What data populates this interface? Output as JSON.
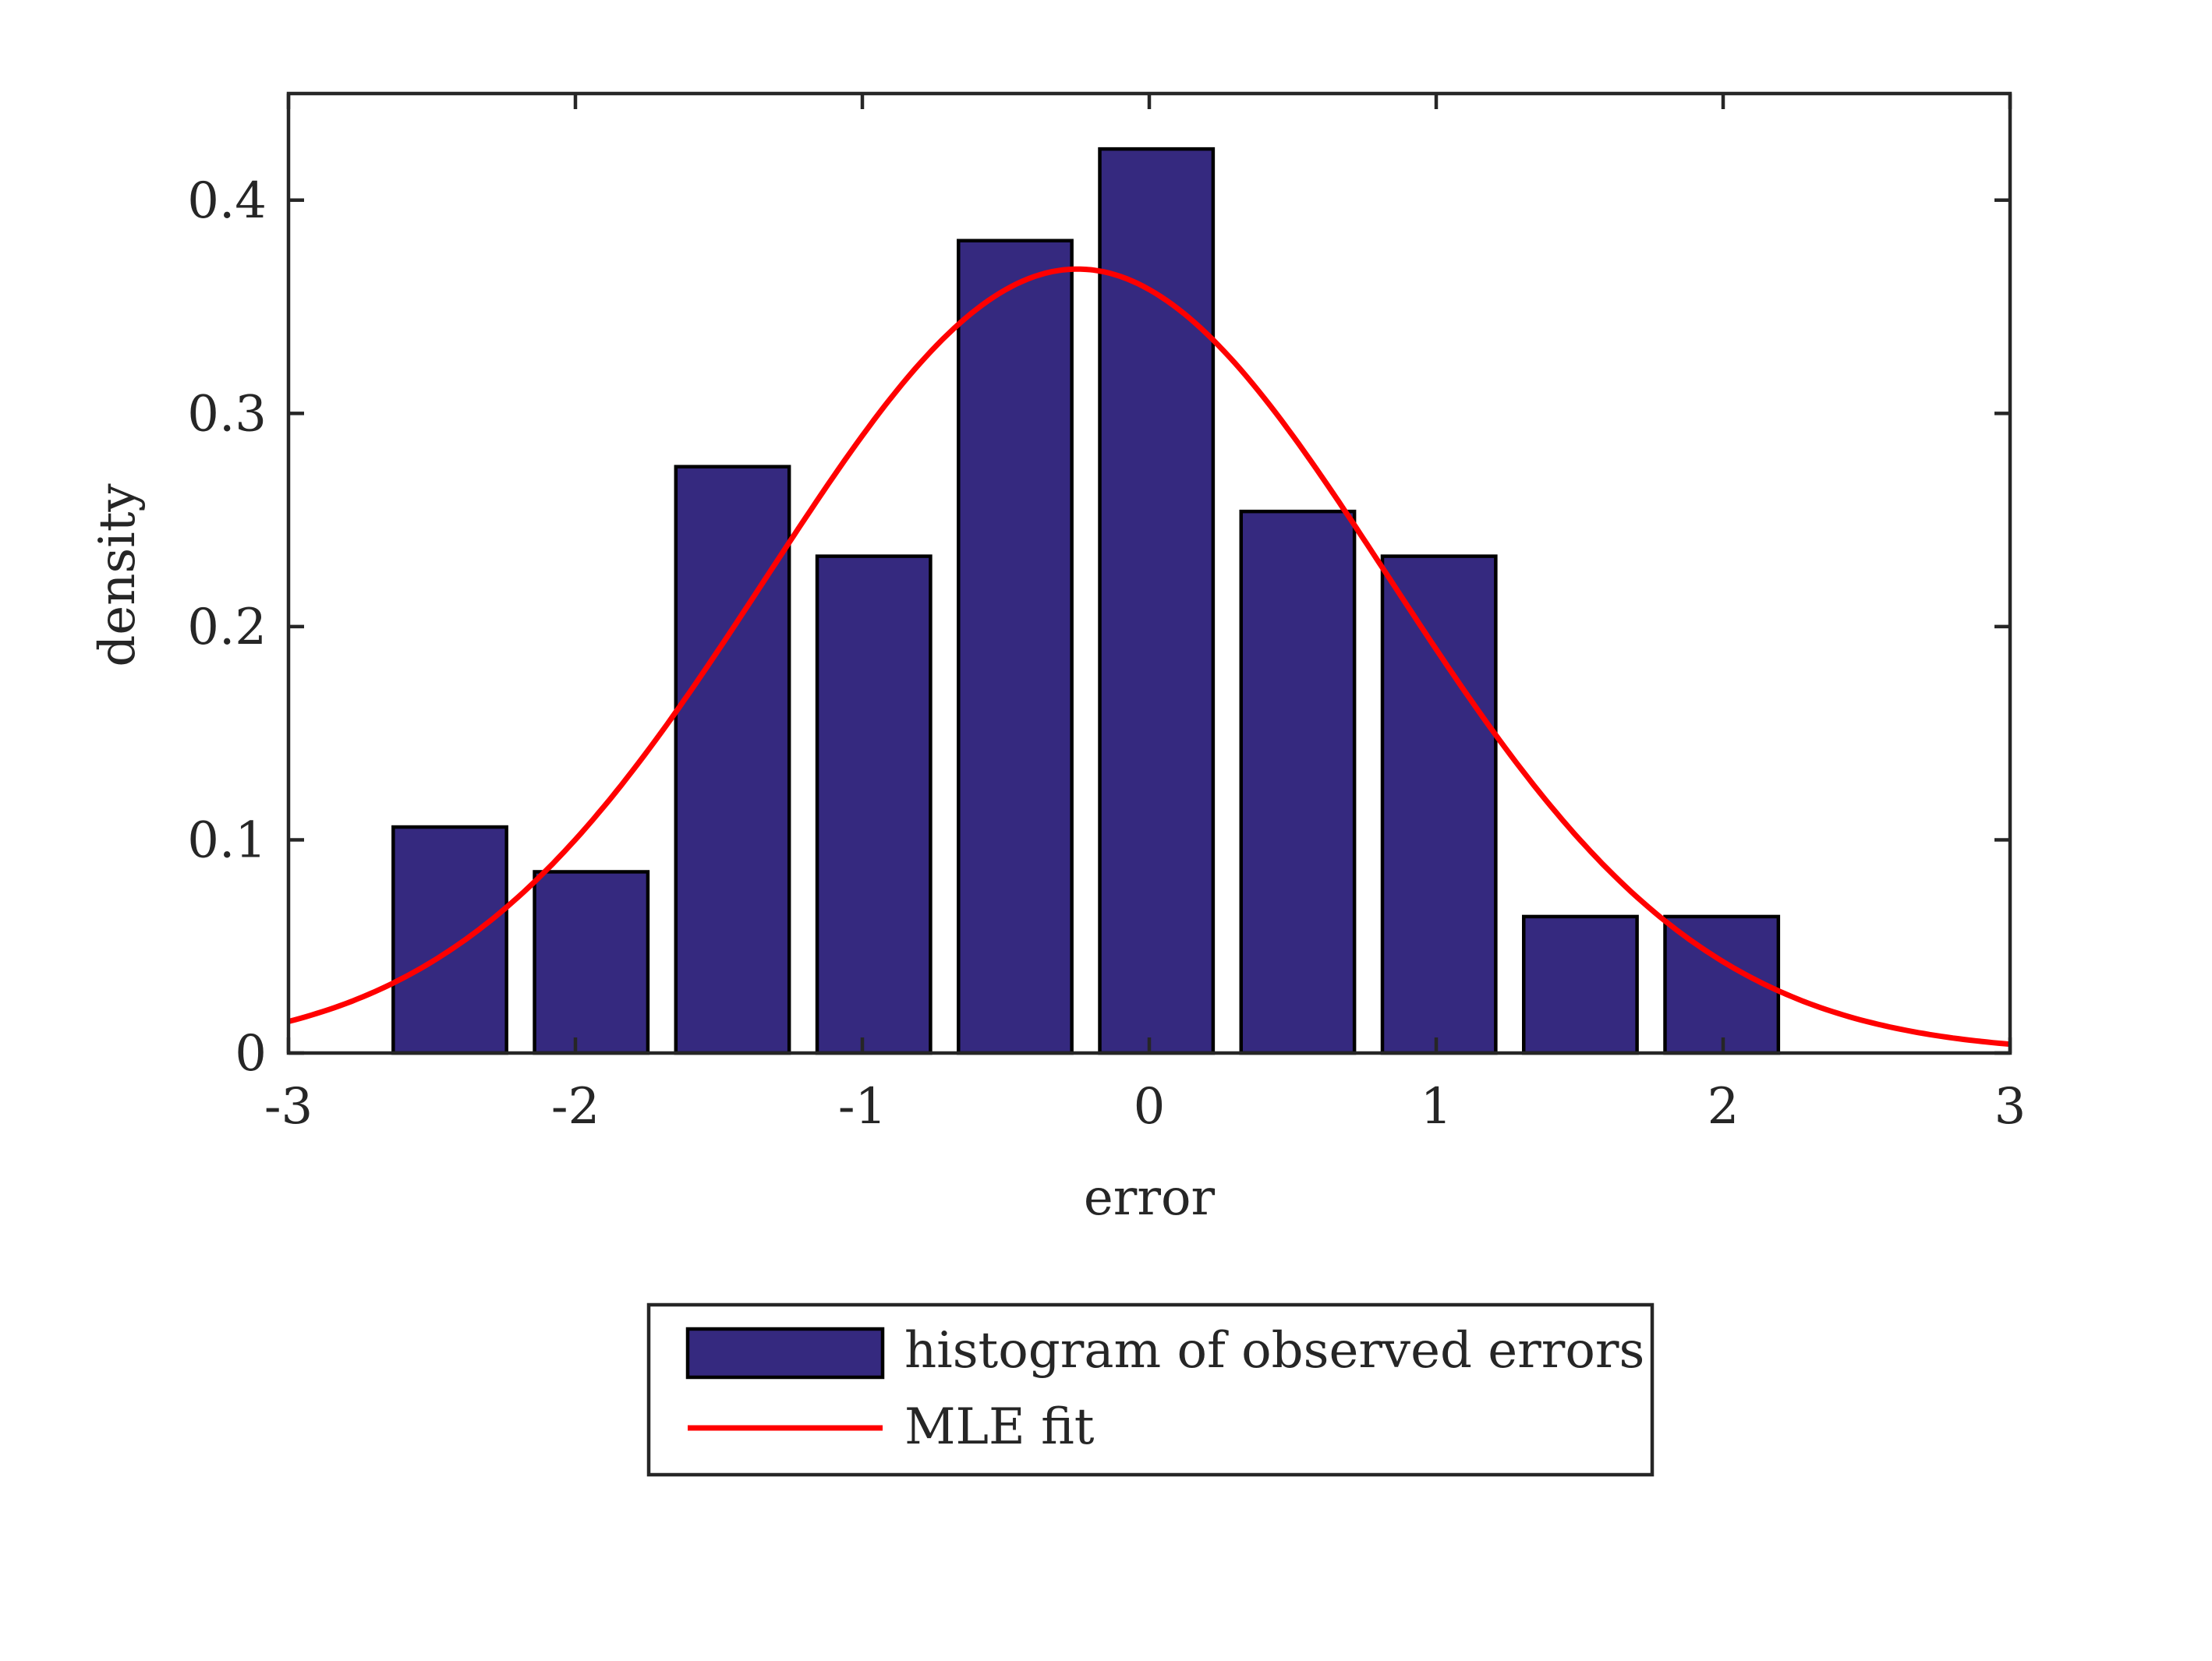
{
  "chart_data": {
    "type": "bar",
    "title": "",
    "xlabel": "error",
    "ylabel": "density",
    "xlim": [
      -3,
      3
    ],
    "ylim": [
      0,
      0.45
    ],
    "xticks": [
      -3,
      -2,
      -1,
      0,
      1,
      2,
      3
    ],
    "xtick_labels": [
      "-3",
      "-2",
      "-1",
      "0",
      "1",
      "2",
      "3"
    ],
    "yticks": [
      0,
      0.1,
      0.2,
      0.3,
      0.4
    ],
    "ytick_labels": [
      "0",
      "0.1",
      "0.2",
      "0.3",
      "0.4"
    ],
    "grid": false,
    "legend_position": "below",
    "series": [
      {
        "name": "histogram of observed errors",
        "type": "bar",
        "color": "#35297f",
        "bin_width": 0.4925,
        "bar_width": 0.395,
        "x": [
          -2.4375,
          -1.945,
          -1.4525,
          -0.96,
          -0.4675,
          0.025,
          0.5175,
          1.01,
          1.5025,
          1.995
        ],
        "values": [
          0.106,
          0.085,
          0.275,
          0.233,
          0.381,
          0.424,
          0.254,
          0.233,
          0.064,
          0.064
        ]
      },
      {
        "name": "MLE fit",
        "type": "line",
        "color": "#ff0000",
        "mean": -0.25,
        "sd": 1.085,
        "x_range": [
          -3,
          3
        ]
      }
    ]
  }
}
